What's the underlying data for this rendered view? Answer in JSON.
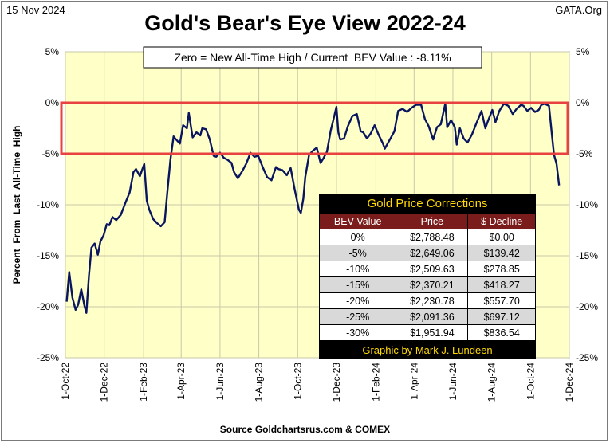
{
  "header": {
    "date": "15 Nov 2024",
    "site": "GATA.Org",
    "title": "Gold's Bear's Eye View 2022-24",
    "source": "Source Goldchartsrus.com & COMEX"
  },
  "chart_data": {
    "type": "line",
    "title": "Gold's Bear's Eye View 2022-24",
    "annotation": "Zero = New All-Time High / Current  BEV Value : -8.11%",
    "ylabel": "Percent  From  Last  All-Time  High",
    "ylim": [
      -25,
      5
    ],
    "yticks": [
      "5%",
      "0%",
      "-5%",
      "-10%",
      "-15%",
      "-20%",
      "-25%"
    ],
    "xlim": [
      "2022-10-01",
      "2024-12-01"
    ],
    "xticks": [
      "1-Oct-22",
      "1-Dec-22",
      "1-Feb-23",
      "1-Apr-23",
      "1-Jun-23",
      "1-Aug-23",
      "1-Oct-23",
      "1-Dec-23",
      "1-Feb-24",
      "1-Apr-24",
      "1-Jun-24",
      "1-Aug-24",
      "1-Oct-24",
      "1-Dec-24"
    ],
    "grid": true,
    "highlight_band": [
      -5,
      0
    ],
    "colors": {
      "line": "#0a1560",
      "plot_bg": "#ffffc8",
      "band": "#e8413f"
    },
    "series": [
      {
        "x": [
          "2022-10-03",
          "2022-10-07",
          "2022-10-12",
          "2022-10-17",
          "2022-10-21",
          "2022-10-26",
          "2022-10-31",
          "2022-11-03",
          "2022-11-07",
          "2022-11-11",
          "2022-11-16",
          "2022-11-21",
          "2022-11-25",
          "2022-11-30",
          "2022-12-05",
          "2022-12-09",
          "2022-12-14",
          "2022-12-20",
          "2022-12-27",
          "2023-01-04",
          "2023-01-10",
          "2023-01-16",
          "2023-01-20",
          "2023-01-26",
          "2023-02-02",
          "2023-02-06",
          "2023-02-10",
          "2023-02-16",
          "2023-02-22",
          "2023-02-28",
          "2023-03-06",
          "2023-03-10",
          "2023-03-15",
          "2023-03-20",
          "2023-03-24",
          "2023-03-30",
          "2023-04-04",
          "2023-04-10",
          "2023-04-13",
          "2023-04-19",
          "2023-04-25",
          "2023-05-01",
          "2023-05-04",
          "2023-05-10",
          "2023-05-16",
          "2023-05-22",
          "2023-05-26",
          "2023-06-01",
          "2023-06-07",
          "2023-06-13",
          "2023-06-19",
          "2023-06-23",
          "2023-06-29",
          "2023-07-06",
          "2023-07-12",
          "2023-07-19",
          "2023-07-25",
          "2023-07-31",
          "2023-08-07",
          "2023-08-14",
          "2023-08-21",
          "2023-08-28",
          "2023-09-01",
          "2023-09-07",
          "2023-09-14",
          "2023-09-20",
          "2023-09-26",
          "2023-10-03",
          "2023-10-06",
          "2023-10-10",
          "2023-10-13",
          "2023-10-19",
          "2023-10-25",
          "2023-10-31",
          "2023-11-06",
          "2023-11-10",
          "2023-11-16",
          "2023-11-22",
          "2023-11-28",
          "2023-12-01",
          "2023-12-04",
          "2023-12-07",
          "2023-12-13",
          "2023-12-19",
          "2023-12-26",
          "2024-01-02",
          "2024-01-08",
          "2024-01-12",
          "2024-01-18",
          "2024-01-24",
          "2024-01-30",
          "2024-02-05",
          "2024-02-12",
          "2024-02-15",
          "2024-02-22",
          "2024-03-01",
          "2024-03-07",
          "2024-03-14",
          "2024-03-21",
          "2024-03-28",
          "2024-04-04",
          "2024-04-12",
          "2024-04-18",
          "2024-04-24",
          "2024-05-01",
          "2024-05-07",
          "2024-05-13",
          "2024-05-20",
          "2024-05-23",
          "2024-05-29",
          "2024-06-04",
          "2024-06-07",
          "2024-06-12",
          "2024-06-18",
          "2024-06-24",
          "2024-07-01",
          "2024-07-08",
          "2024-07-16",
          "2024-07-22",
          "2024-07-26",
          "2024-08-02",
          "2024-08-07",
          "2024-08-13",
          "2024-08-20",
          "2024-08-27",
          "2024-09-03",
          "2024-09-09",
          "2024-09-16",
          "2024-09-20",
          "2024-09-26",
          "2024-10-02",
          "2024-10-08",
          "2024-10-14",
          "2024-10-18",
          "2024-10-23",
          "2024-10-30",
          "2024-11-04",
          "2024-11-07",
          "2024-11-11",
          "2024-11-15"
        ],
        "y": [
          -19.5,
          -16.6,
          -19.1,
          -20.3,
          -19.8,
          -18.3,
          -19.9,
          -20.6,
          -17.0,
          -14.2,
          -13.8,
          -14.9,
          -13.6,
          -13.0,
          -11.9,
          -12.0,
          -11.2,
          -11.5,
          -11.0,
          -9.7,
          -8.8,
          -6.8,
          -6.5,
          -7.2,
          -6.0,
          -9.6,
          -10.5,
          -11.4,
          -11.8,
          -12.1,
          -11.7,
          -8.9,
          -5.6,
          -3.3,
          -3.6,
          -4.0,
          -2.2,
          -2.5,
          -1.0,
          -3.4,
          -2.9,
          -3.2,
          -2.5,
          -2.6,
          -3.6,
          -5.2,
          -5.3,
          -4.9,
          -5.4,
          -5.6,
          -5.9,
          -6.8,
          -7.4,
          -6.7,
          -6.0,
          -4.9,
          -5.3,
          -5.2,
          -6.3,
          -7.3,
          -7.6,
          -6.3,
          -6.5,
          -6.6,
          -7.1,
          -6.4,
          -8.4,
          -10.5,
          -10.8,
          -9.4,
          -7.3,
          -5.1,
          -4.7,
          -4.4,
          -5.9,
          -5.5,
          -4.8,
          -2.7,
          -1.2,
          -0.4,
          -2.9,
          -3.6,
          -3.5,
          -2.3,
          -1.3,
          -1.1,
          -2.8,
          -2.9,
          -3.5,
          -3.0,
          -2.2,
          -3.1,
          -4.0,
          -4.5,
          -3.7,
          -2.8,
          -0.8,
          -0.6,
          -0.9,
          -0.5,
          -0.2,
          -0.2,
          -1.6,
          -2.3,
          -3.6,
          -2.4,
          -2.1,
          -0.1,
          -2.4,
          -1.7,
          -2.4,
          -4.1,
          -2.5,
          -3.5,
          -3.9,
          -3.1,
          -2.0,
          -0.8,
          -2.5,
          -1.8,
          -0.7,
          -1.9,
          -0.8,
          -0.1,
          -0.3,
          -1.1,
          -0.6,
          -0.2,
          -0.3,
          -0.8,
          -0.5,
          -0.9,
          -0.7,
          -0.2,
          -0.1,
          -0.3,
          -3.4,
          -5.1,
          -6.0,
          -8.1
        ]
      }
    ]
  },
  "table": {
    "caption": "Gold Price Corrections",
    "headers": [
      "BEV Value",
      "Price",
      "$ Decline"
    ],
    "rows": [
      [
        "0%",
        "$2,788.48",
        "$0.00"
      ],
      [
        "-5%",
        "$2,649.06",
        "$139.42"
      ],
      [
        "-10%",
        "$2,509.63",
        "$278.85"
      ],
      [
        "-15%",
        "$2,370.21",
        "$418.27"
      ],
      [
        "-20%",
        "$2,230.78",
        "$557.70"
      ],
      [
        "-25%",
        "$2,091.36",
        "$697.12"
      ],
      [
        "-30%",
        "$1,951.94",
        "$836.54"
      ]
    ],
    "credit": "Graphic by Mark J. Lundeen"
  }
}
